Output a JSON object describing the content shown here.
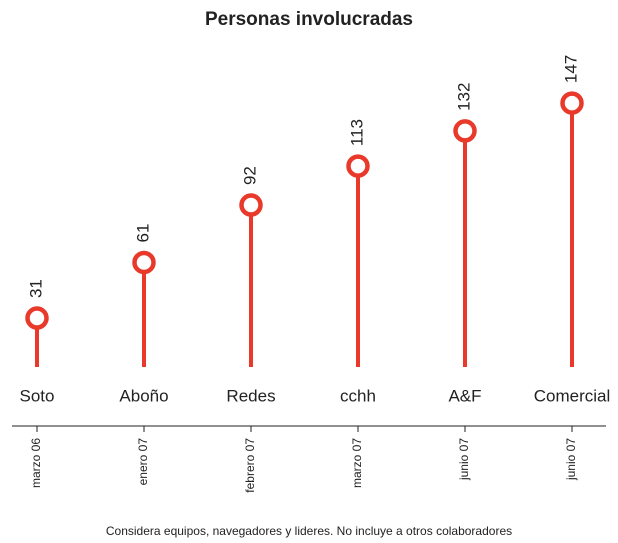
{
  "chart_data": {
    "type": "lollipop",
    "title": "Personas involucradas",
    "categories": [
      "Soto",
      "Aboño",
      "Redes",
      "cchh",
      "A&F",
      "Comercial"
    ],
    "dates": [
      "marzo 06",
      "enero 07",
      "febrero 07",
      "marzo 07",
      "junio 07",
      "junio 07"
    ],
    "values": [
      31,
      61,
      92,
      113,
      132,
      147
    ],
    "color": "#e8392a",
    "note": "Considera equipos, navegadores y lideres. No incluye a otros colaboradores"
  }
}
